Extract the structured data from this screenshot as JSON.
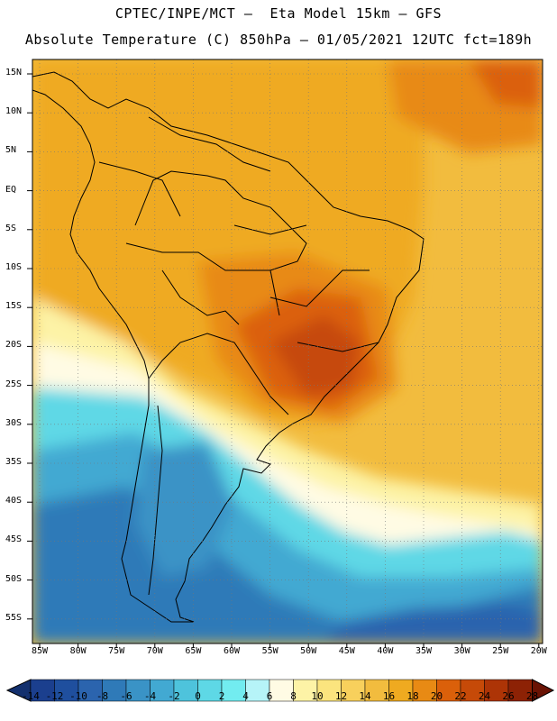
{
  "title_line1": "CPTEC/INPE/MCT –  Eta Model 15km – GFS",
  "title_line2": "Absolute Temperature (C) 850hPa – 01/05/2021 12UTC fct=189h",
  "lat_labels": [
    "15N",
    "10N",
    "5N",
    "EQ",
    "5S",
    "10S",
    "15S",
    "20S",
    "25S",
    "30S",
    "35S",
    "40S",
    "45S",
    "50S",
    "55S"
  ],
  "lon_labels": [
    "85W",
    "80W",
    "75W",
    "70W",
    "65W",
    "60W",
    "55W",
    "50W",
    "45W",
    "40W",
    "35W",
    "30W",
    "25W",
    "20W"
  ],
  "colorbar": {
    "ticks": [
      "-14",
      "-12",
      "-10",
      "-8",
      "-6",
      "-4",
      "-2",
      "0",
      "2",
      "4",
      "6",
      "8",
      "10",
      "12",
      "14",
      "16",
      "18",
      "20",
      "22",
      "24",
      "26",
      "28"
    ],
    "colors": [
      "#1b3f8e",
      "#1f4f9e",
      "#2b64ae",
      "#2f7ab8",
      "#3a93c6",
      "#42a9d2",
      "#4ec3dc",
      "#5ed8e6",
      "#72ecf0",
      "#b6f4f8",
      "#fffbe4",
      "#fdf3a6",
      "#fbe47e",
      "#f8d05c",
      "#f2bc3e",
      "#efaa20",
      "#e88a14",
      "#db600a",
      "#c64a08",
      "#ad3406",
      "#8d2205"
    ],
    "low_color": "#13306e",
    "high_color": "#6a1304"
  },
  "field_colors": {
    "ocean_warm": "#f2bc3e",
    "land_warm": "#efaa20",
    "hot": "#e88a14",
    "hotter": "#db600a",
    "cool": "#fdf3a6",
    "cold": "#5ed8e6",
    "colder": "#42a9d2",
    "coldest": "#2f7ab8"
  }
}
